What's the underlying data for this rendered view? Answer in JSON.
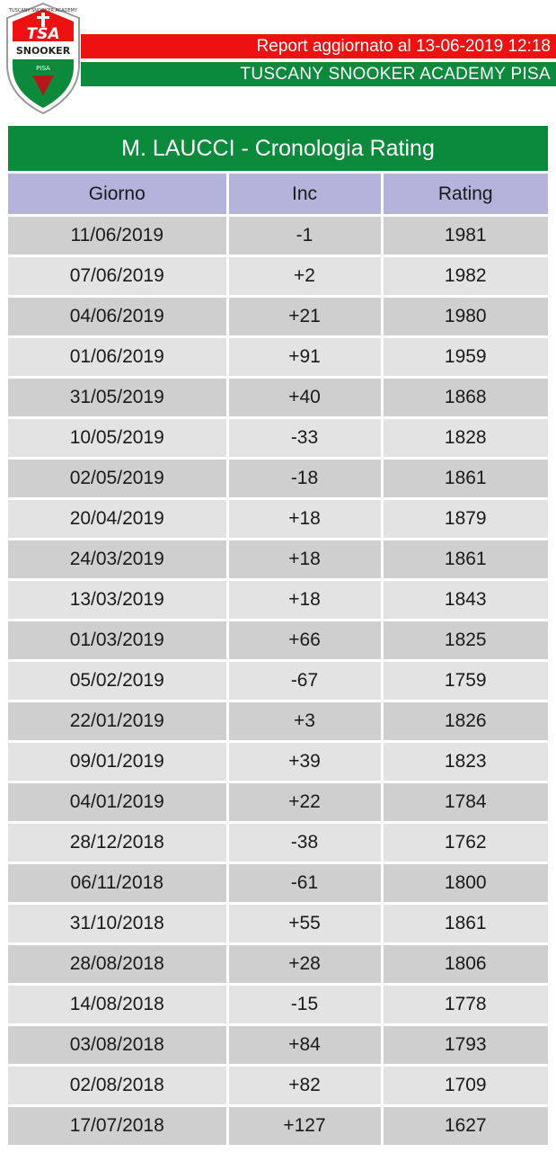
{
  "header": {
    "logo": {
      "top_text": "TUSCANY SNOOKER ACADEMY",
      "main_text": "TSA",
      "sub_text": "SNOOKER",
      "city_text": "PISA",
      "colors": {
        "red": "#ee1111",
        "green": "#0b8a3c"
      }
    },
    "report_updated": "Report aggiornato al 13-06-2019 12:18",
    "academy_name": "TUSCANY SNOOKER ACADEMY PISA"
  },
  "table": {
    "title": "M. LAUCCI - Cronologia Rating",
    "columns": [
      "Giorno",
      "Inc",
      "Rating"
    ],
    "rows": [
      [
        "11/06/2019",
        "-1",
        "1981"
      ],
      [
        "07/06/2019",
        "+2",
        "1982"
      ],
      [
        "04/06/2019",
        "+21",
        "1980"
      ],
      [
        "01/06/2019",
        "+91",
        "1959"
      ],
      [
        "31/05/2019",
        "+40",
        "1868"
      ],
      [
        "10/05/2019",
        "-33",
        "1828"
      ],
      [
        "02/05/2019",
        "-18",
        "1861"
      ],
      [
        "20/04/2019",
        "+18",
        "1879"
      ],
      [
        "24/03/2019",
        "+18",
        "1861"
      ],
      [
        "13/03/2019",
        "+18",
        "1843"
      ],
      [
        "01/03/2019",
        "+66",
        "1825"
      ],
      [
        "05/02/2019",
        "-67",
        "1759"
      ],
      [
        "22/01/2019",
        "+3",
        "1826"
      ],
      [
        "09/01/2019",
        "+39",
        "1823"
      ],
      [
        "04/01/2019",
        "+22",
        "1784"
      ],
      [
        "28/12/2018",
        "-38",
        "1762"
      ],
      [
        "06/11/2018",
        "-61",
        "1800"
      ],
      [
        "31/10/2018",
        "+55",
        "1861"
      ],
      [
        "28/08/2018",
        "+28",
        "1806"
      ],
      [
        "14/08/2018",
        "-15",
        "1778"
      ],
      [
        "03/08/2018",
        "+84",
        "1793"
      ],
      [
        "02/08/2018",
        "+82",
        "1709"
      ],
      [
        "17/07/2018",
        "+127",
        "1627"
      ]
    ]
  },
  "colors": {
    "header_row": "#b3b3dc",
    "row_dark": "#cfcfcf",
    "row_light": "#e3e3e3",
    "title_bg": "#0b8a3c"
  }
}
